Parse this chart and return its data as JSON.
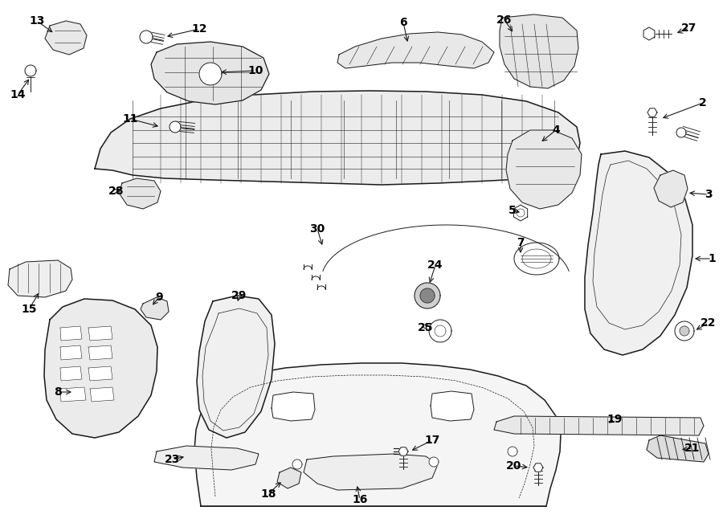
{
  "background_color": "#ffffff",
  "line_color": "#1a1a1a",
  "text_color": "#000000",
  "label_fontsize": 10,
  "label_fontweight": "bold",
  "lw_main": 1.1,
  "lw_thin": 0.7,
  "lw_hair": 0.4,
  "fig_w": 9.0,
  "fig_h": 6.61,
  "dpi": 100
}
